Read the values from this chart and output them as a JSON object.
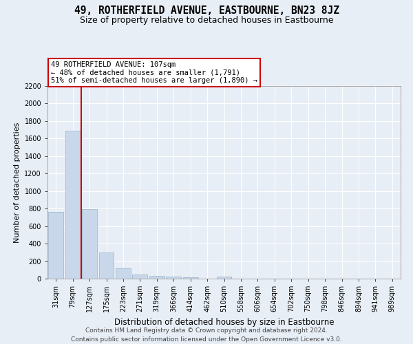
{
  "title": "49, ROTHERFIELD AVENUE, EASTBOURNE, BN23 8JZ",
  "subtitle": "Size of property relative to detached houses in Eastbourne",
  "xlabel": "Distribution of detached houses by size in Eastbourne",
  "ylabel": "Number of detached properties",
  "footer_line1": "Contains HM Land Registry data © Crown copyright and database right 2024.",
  "footer_line2": "Contains public sector information licensed under the Open Government Licence v3.0.",
  "categories": [
    "31sqm",
    "79sqm",
    "127sqm",
    "175sqm",
    "223sqm",
    "271sqm",
    "319sqm",
    "366sqm",
    "414sqm",
    "462sqm",
    "510sqm",
    "558sqm",
    "606sqm",
    "654sqm",
    "702sqm",
    "750sqm",
    "798sqm",
    "846sqm",
    "894sqm",
    "941sqm",
    "989sqm"
  ],
  "values": [
    760,
    1690,
    790,
    300,
    120,
    45,
    30,
    25,
    18,
    0,
    22,
    0,
    0,
    0,
    0,
    0,
    0,
    0,
    0,
    0,
    0
  ],
  "bar_color": "#c8d8ea",
  "bar_edge_color": "#9ab4cc",
  "vline_index": 1.5,
  "vline_color": "#cc0000",
  "annotation_text": "49 ROTHERFIELD AVENUE: 107sqm\n← 48% of detached houses are smaller (1,791)\n51% of semi-detached houses are larger (1,890) →",
  "ylim": [
    0,
    2200
  ],
  "yticks": [
    0,
    200,
    400,
    600,
    800,
    1000,
    1200,
    1400,
    1600,
    1800,
    2000,
    2200
  ],
  "bg_color": "#e8eef6",
  "grid_color": "#ffffff",
  "title_fontsize": 10.5,
  "subtitle_fontsize": 9,
  "ylabel_fontsize": 8,
  "xlabel_fontsize": 8.5,
  "tick_fontsize": 7,
  "footer_fontsize": 6.5
}
